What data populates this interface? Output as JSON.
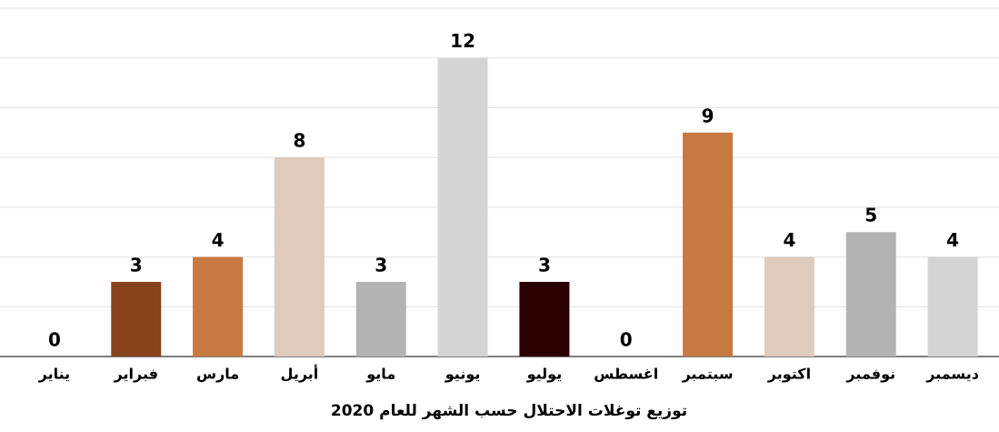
{
  "chart_data": {
    "type": "bar",
    "title": "توزيع توغلات الاحتلال حسب الشهر للعام 2020",
    "categories": [
      "يناير",
      "فبراير",
      "مارس",
      "أبريل",
      "مايو",
      "يونيو",
      "يوليو",
      "اغسطس",
      "سبتمبر",
      "اكتوبر",
      "نوفمبر",
      "ديسمبر"
    ],
    "values": [
      0,
      3,
      4,
      8,
      3,
      12,
      3,
      0,
      9,
      4,
      5,
      4
    ],
    "colors": [
      "#c87941",
      "#88421c",
      "#c87941",
      "#dfcbbb",
      "#b3b3b3",
      "#d4d4d4",
      "#2a0000",
      "#c87941",
      "#c87941",
      "#dfcbbb",
      "#b3b3b3",
      "#d4d4d4"
    ],
    "ylim": [
      0,
      14
    ],
    "yticks": [
      0,
      2,
      4,
      6,
      8,
      10,
      12,
      14
    ],
    "grid": true
  }
}
